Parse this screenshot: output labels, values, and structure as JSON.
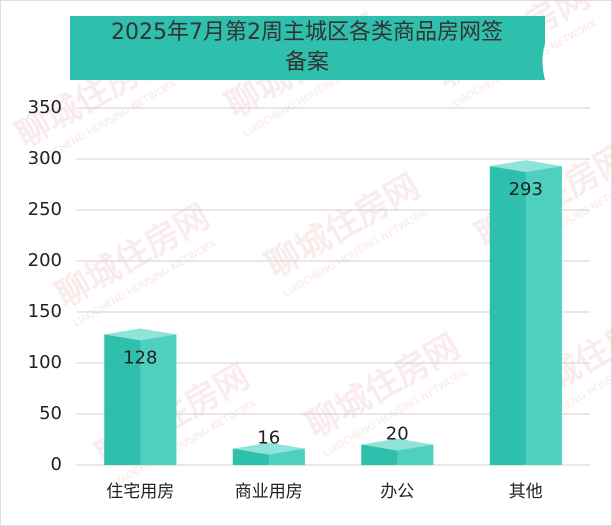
{
  "chart_data": {
    "type": "bar3d",
    "title": [
      "2025年7月第2周主城区各类商品房网签",
      "备案"
    ],
    "categories": [
      "住宅用房",
      "商业用房",
      "办公",
      "其他"
    ],
    "values": [
      128,
      16,
      20,
      293
    ],
    "color": "#2fbfad",
    "ylim": [
      0,
      350
    ],
    "yticks": [
      0,
      50,
      100,
      150,
      200,
      250,
      300,
      350
    ],
    "grid": true,
    "watermark": [
      "聊城住房网",
      "LIAOCHENG HOUSING NETWORK"
    ]
  }
}
